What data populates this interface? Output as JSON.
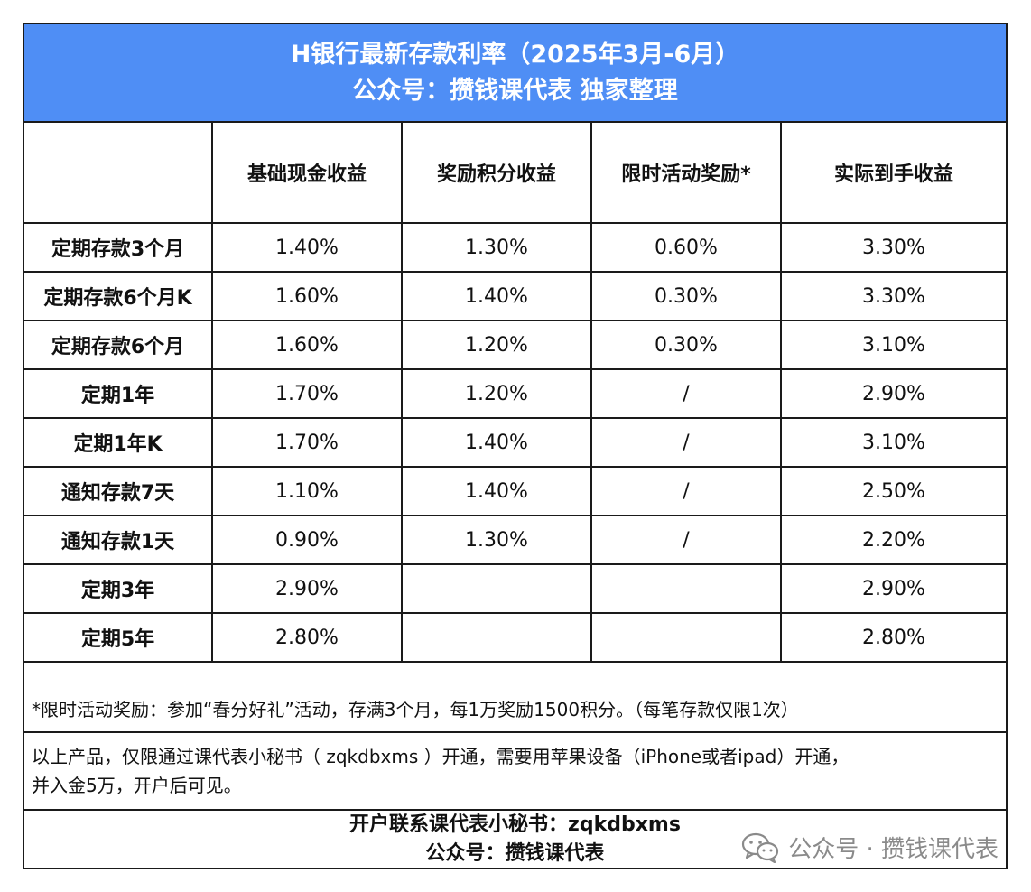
{
  "header": {
    "title": "H银行最新存款利率（2025年3月-6月）",
    "subtitle": "公众号：攒钱课代表 独家整理"
  },
  "table": {
    "columns": [
      "",
      "基础现金收益",
      "奖励积分收益",
      "限时活动奖励*",
      "实际到手收益"
    ],
    "rows": [
      [
        "定期存款3个月",
        "1.40%",
        "1.30%",
        "0.60%",
        "3.30%"
      ],
      [
        "定期存款6个月K",
        "1.60%",
        "1.40%",
        "0.30%",
        "3.30%"
      ],
      [
        "定期存款6个月",
        "1.60%",
        "1.20%",
        "0.30%",
        "3.10%"
      ],
      [
        "定期1年",
        "1.70%",
        "1.20%",
        "/",
        "2.90%"
      ],
      [
        "定期1年K",
        "1.70%",
        "1.40%",
        "/",
        "3.10%"
      ],
      [
        "通知存款7天",
        "1.10%",
        "1.40%",
        "/",
        "2.50%"
      ],
      [
        "通知存款1天",
        "0.90%",
        "1.30%",
        "/",
        "2.20%"
      ],
      [
        "定期3年",
        "2.90%",
        "",
        "",
        "2.90%"
      ],
      [
        "定期5年",
        "2.80%",
        "",
        "",
        "2.80%"
      ]
    ]
  },
  "footnote": "*限时活动奖励：参加“春分好礼”活动，存满3个月，每1万奖励1500积分。（每笔存款仅限1次）",
  "info": {
    "line1": "以上产品，仅限通过课代表小秘书（ zqkdbxms ）开通，需要用苹果设备（iPhone或者ipad）开通，",
    "line2": "并入金5万，开户后可见。"
  },
  "contact": {
    "line1": "开户联系课代表小秘书：zqkdbxms",
    "line2": "公众号：攒钱课代表"
  },
  "watermark": {
    "text": "公众号 · 攒钱课代表",
    "icon": "wechat-icon"
  },
  "colors": {
    "header_bg": "#4f8ef5",
    "header_text": "#ffffff",
    "border": "#1a1a1a",
    "watermark": "#8a8a8a"
  }
}
